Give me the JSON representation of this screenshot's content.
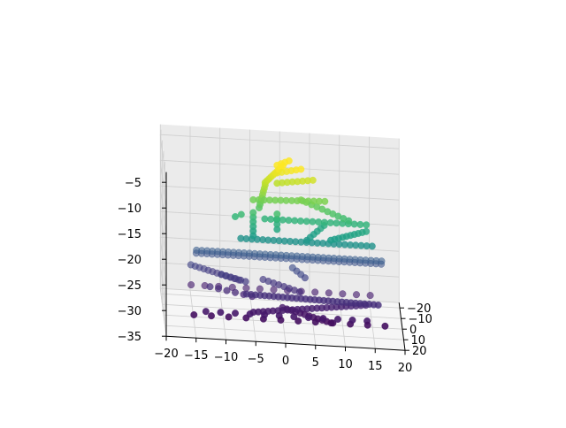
{
  "chart_data": {
    "type": "scatter",
    "projection": "3d",
    "title": "",
    "xlabel": "",
    "ylabel": "",
    "zlabel": "",
    "grid": true,
    "colormap": "viridis",
    "color_by": "z",
    "color_range": [
      -35,
      -5
    ],
    "xlim": [
      -20,
      20
    ],
    "ylim": [
      -25,
      20
    ],
    "zlim": [
      -35,
      -3
    ],
    "x_ticks": [
      -20,
      -15,
      -10,
      -5,
      0,
      5,
      10,
      15,
      20
    ],
    "y_ticks": [
      -20,
      -10,
      0,
      10,
      20
    ],
    "z_ticks": [
      -5,
      -10,
      -15,
      -20,
      -25,
      -30,
      -35
    ],
    "x_tick_labels": [
      "−20",
      "−15",
      "−10",
      "−5",
      "0",
      "5",
      "10",
      "15",
      "20"
    ],
    "y_tick_labels": [
      "−20",
      "−10",
      "0",
      "10",
      "20"
    ],
    "z_tick_labels": [
      "−5",
      "−10",
      "−15",
      "−20",
      "−25",
      "−30",
      "−35"
    ],
    "series": [
      {
        "name": "",
        "segments": [
          {
            "from": [
              -14,
              -24,
              -27.5
            ],
            "to": [
              17,
              -24,
              -27.5
            ],
            "n": 36
          },
          {
            "from": [
              -14,
              -22,
              -26.5
            ],
            "to": [
              17,
              -22,
              -26.5
            ],
            "n": 36
          },
          {
            "from": [
              -15,
              -18,
              -32.5
            ],
            "to": [
              15,
              -18,
              -32.5
            ],
            "n": 14
          },
          {
            "from": [
              -13,
              4,
              -33
            ],
            "to": [
              14,
              4,
              -33
            ],
            "n": 12
          },
          {
            "from": [
              -15,
              4,
              -33.8
            ],
            "to": [
              17,
              4,
              -33.8
            ],
            "n": 12
          },
          {
            "from": [
              -6,
              -5,
              -31
            ],
            "to": [
              16,
              -2,
              -31
            ],
            "n": 30
          },
          {
            "from": [
              -5,
              2,
              -33
            ],
            "to": [
              14,
              -6,
              -32
            ],
            "n": 24
          },
          {
            "from": [
              0,
              -4,
              -33
            ],
            "to": [
              8,
              3,
              -34
            ],
            "n": 12
          },
          {
            "from": [
              -15,
              -20,
              -29
            ],
            "to": [
              -7,
              -18,
              -31
            ],
            "n": 12
          },
          {
            "from": [
              -3,
              -15,
              -30
            ],
            "to": [
              3,
              -10,
              -31
            ],
            "n": 8
          },
          {
            "from": [
              -10,
              -15,
              -29.5
            ],
            "to": [
              -6,
              -12,
              -30
            ],
            "n": 6
          },
          {
            "from": [
              -12,
              -10,
              -31
            ],
            "to": [
              -5,
              -8,
              -32
            ],
            "n": 6
          },
          {
            "from": [
              2,
              -18,
              -28
            ],
            "to": [
              4,
              -14,
              -29
            ],
            "n": 4
          },
          {
            "from": [
              -7,
              -3,
              -19.8
            ],
            "to": [
              15,
              -3,
              -19.8
            ],
            "n": 25
          },
          {
            "from": [
              -3,
              -2,
              -15.5
            ],
            "to": [
              14,
              -2,
              -15.5
            ],
            "n": 18
          },
          {
            "from": [
              8,
              0,
              -18.5
            ],
            "to": [
              14,
              -3,
              -17
            ],
            "n": 10
          },
          {
            "from": [
              4,
              -1,
              -19
            ],
            "to": [
              7,
              -4,
              -16.5
            ],
            "n": 6
          },
          {
            "from": [
              -5,
              0,
              -18.5
            ],
            "to": [
              -5,
              0,
              -14
            ],
            "n": 6
          },
          {
            "from": [
              -1,
              0,
              -17
            ],
            "to": [
              -1,
              0,
              -14
            ],
            "n": 4
          },
          {
            "from": [
              -5,
              0,
              -11.5
            ],
            "to": [
              7,
              0,
              -11
            ],
            "n": 14
          },
          {
            "from": [
              3,
              0,
              -11
            ],
            "to": [
              11,
              0,
              -14.5
            ],
            "n": 10
          },
          {
            "from": [
              -4,
              0,
              -13
            ],
            "to": [
              -3,
              0,
              -8.5
            ],
            "n": 8
          },
          {
            "from": [
              -3,
              0,
              -8
            ],
            "to": [
              0,
              0,
              -4.5
            ],
            "n": 10
          },
          {
            "from": [
              -1,
              0,
              -8
            ],
            "to": [
              5,
              0,
              -7
            ],
            "n": 8
          },
          {
            "from": [
              -1,
              0,
              -6
            ],
            "to": [
              3,
              0,
              -5
            ],
            "n": 6
          },
          {
            "from": [
              -1,
              0,
              -4.5
            ],
            "to": [
              1,
              0,
              -3.5
            ],
            "n": 4
          },
          {
            "from": [
              -8,
              0,
              -15
            ],
            "to": [
              -7,
              0,
              -14.5
            ],
            "n": 2
          }
        ]
      }
    ]
  }
}
